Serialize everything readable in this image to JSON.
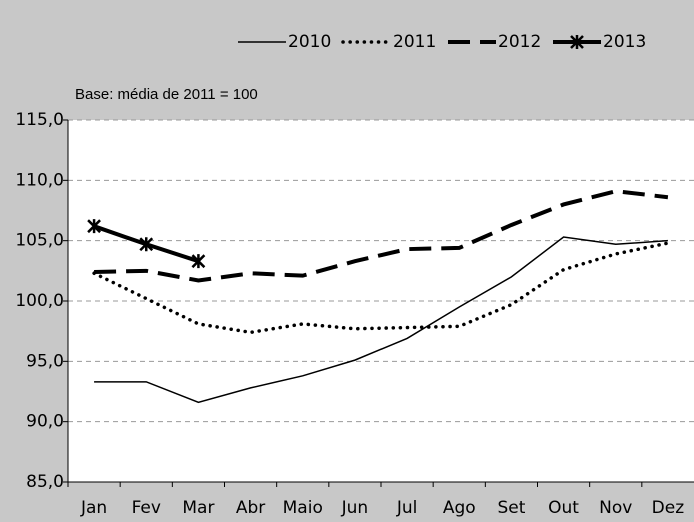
{
  "chart_data": {
    "type": "line",
    "annotation": "Base: média de 2011 = 100",
    "categories": [
      "Jan",
      "Fev",
      "Mar",
      "Abr",
      "Maio",
      "Jun",
      "Jul",
      "Ago",
      "Set",
      "Out",
      "Nov",
      "Dez"
    ],
    "series": [
      {
        "name": "2010",
        "color": "#000000",
        "style": "solid",
        "values": [
          93.3,
          93.3,
          91.6,
          92.8,
          93.8,
          95.1,
          96.9,
          99.5,
          102.0,
          105.3,
          104.7,
          105.0
        ]
      },
      {
        "name": "2011",
        "color": "#000000",
        "style": "dotted",
        "values": [
          102.3,
          100.2,
          98.1,
          97.4,
          98.1,
          97.7,
          97.8,
          97.9,
          99.7,
          102.6,
          103.9,
          104.8
        ]
      },
      {
        "name": "2012",
        "color": "#000000",
        "style": "dashed",
        "values": [
          102.4,
          102.5,
          101.7,
          102.3,
          102.1,
          103.3,
          104.3,
          104.4,
          106.3,
          108.0,
          109.1,
          108.6
        ]
      },
      {
        "name": "2013",
        "color": "#000000",
        "style": "marker",
        "values": [
          106.2,
          104.7,
          103.3,
          null,
          null,
          null,
          null,
          null,
          null,
          null,
          null,
          null
        ]
      }
    ],
    "ylim": [
      85,
      115
    ],
    "yticks": [
      {
        "value": 85,
        "label": "85,0"
      },
      {
        "value": 90,
        "label": "90,0"
      },
      {
        "value": 95,
        "label": "95,0"
      },
      {
        "value": 100,
        "label": "100,0"
      },
      {
        "value": 105,
        "label": "105,0"
      },
      {
        "value": 110,
        "label": "110,0"
      },
      {
        "value": 115,
        "label": "115,0"
      }
    ],
    "grid": true
  }
}
